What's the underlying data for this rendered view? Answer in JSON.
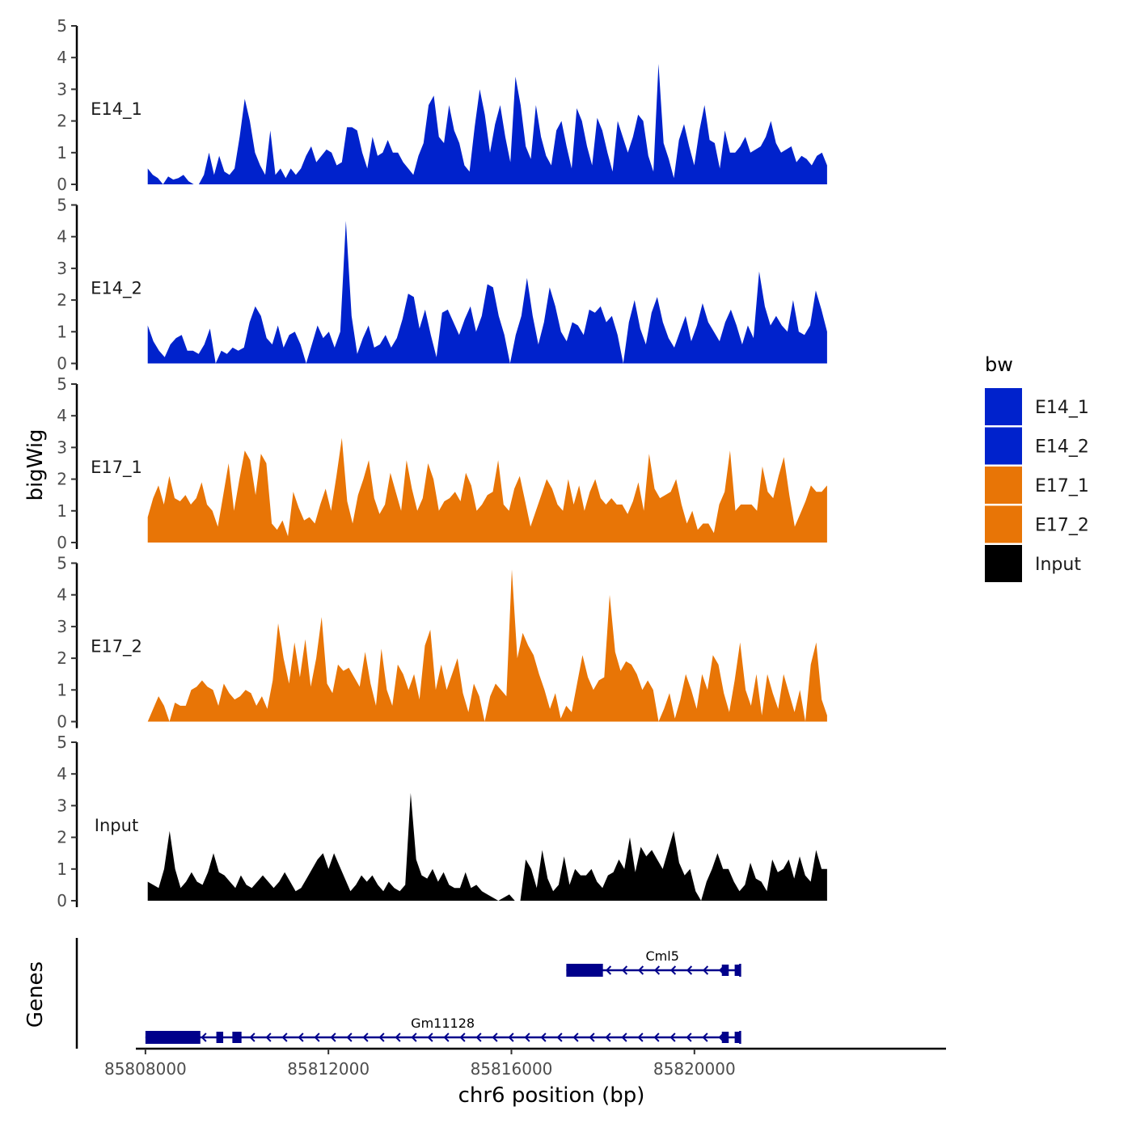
{
  "chart_data": {
    "type": "area",
    "xlabel": "chr6 position (bp)",
    "ylabel": "bigWig",
    "gene_panel_label": "Genes",
    "x_range": [
      85806500,
      85825500
    ],
    "x_ticks": [
      85808000,
      85812000,
      85816000,
      85820000
    ],
    "x_tick_labels": [
      "85808000",
      "85812000",
      "85816000",
      "85820000"
    ],
    "y_range": [
      0,
      5
    ],
    "y_ticks": [
      0,
      1,
      2,
      3,
      4,
      5
    ],
    "y_tick_labels": [
      "0",
      "1",
      "2",
      "3",
      "4",
      "5"
    ],
    "legend": {
      "title": "bw",
      "entries": [
        {
          "label": "E14_1",
          "color": "#0022CC"
        },
        {
          "label": "E14_2",
          "color": "#0022CC"
        },
        {
          "label": "E17_1",
          "color": "#E87506"
        },
        {
          "label": "E17_2",
          "color": "#E87506"
        },
        {
          "label": "Input",
          "color": "#000000"
        }
      ]
    },
    "tracks": [
      {
        "name": "E14_1",
        "color": "#0022CC",
        "x_start": 85808050,
        "x_end": 85822900,
        "values": [
          0.5,
          0.3,
          0.2,
          0,
          0.25,
          0.15,
          0.2,
          0.3,
          0.1,
          0,
          0,
          0.3,
          1.0,
          0.3,
          0.9,
          0.4,
          0.3,
          0.5,
          1.5,
          2.7,
          2.0,
          1.0,
          0.6,
          0.3,
          1.7,
          0.3,
          0.5,
          0.2,
          0.5,
          0.3,
          0.5,
          0.9,
          1.2,
          0.7,
          0.9,
          1.1,
          1.0,
          0.6,
          0.7,
          1.8,
          1.8,
          1.7,
          1.0,
          0.5,
          1.5,
          0.9,
          1.0,
          1.4,
          1.0,
          1.0,
          0.7,
          0.5,
          0.3,
          0.9,
          1.3,
          2.5,
          2.8,
          1.5,
          1.3,
          2.5,
          1.7,
          1.3,
          0.6,
          0.4,
          1.8,
          3.0,
          2.2,
          1.0,
          1.9,
          2.5,
          1.5,
          0.7,
          3.4,
          2.5,
          1.2,
          0.8,
          2.5,
          1.5,
          0.9,
          0.6,
          1.7,
          2.0,
          1.2,
          0.5,
          2.4,
          2.0,
          1.2,
          0.6,
          2.1,
          1.7,
          1.0,
          0.4,
          2.0,
          1.5,
          1.0,
          1.5,
          2.2,
          2.0,
          0.9,
          0.4,
          3.8,
          1.3,
          0.8,
          0.2,
          1.4,
          1.9,
          1.2,
          0.6,
          1.7,
          2.5,
          1.4,
          1.3,
          0.5,
          1.7,
          1.0,
          1.0,
          1.2,
          1.5,
          1.0,
          1.1,
          1.2,
          1.5,
          2.0,
          1.3,
          1.0,
          1.1,
          1.2,
          0.7,
          0.9,
          0.8,
          0.6,
          0.9,
          1.0,
          0.6
        ]
      },
      {
        "name": "E14_2",
        "color": "#0022CC",
        "x_start": 85808050,
        "x_end": 85822900,
        "values": [
          1.2,
          0.7,
          0.4,
          0.2,
          0.6,
          0.8,
          0.9,
          0.4,
          0.4,
          0.3,
          0.6,
          1.1,
          0,
          0.4,
          0.3,
          0.5,
          0.4,
          0.5,
          1.3,
          1.8,
          1.5,
          0.8,
          0.6,
          1.2,
          0.5,
          0.9,
          1.0,
          0.6,
          0,
          0.6,
          1.2,
          0.8,
          1.0,
          0.5,
          1.0,
          4.5,
          1.5,
          0.3,
          0.8,
          1.2,
          0.5,
          0.6,
          0.9,
          0.5,
          0.8,
          1.4,
          2.2,
          2.1,
          1.1,
          1.7,
          0.9,
          0.2,
          1.6,
          1.7,
          1.3,
          0.9,
          1.4,
          1.8,
          1.0,
          1.5,
          2.5,
          2.4,
          1.5,
          0.9,
          0,
          0.9,
          1.5,
          2.7,
          1.5,
          0.6,
          1.3,
          2.4,
          1.8,
          1.0,
          0.7,
          1.3,
          1.2,
          0.9,
          1.7,
          1.6,
          1.8,
          1.3,
          1.5,
          0.9,
          0,
          1.3,
          2.0,
          1.1,
          0.6,
          1.6,
          2.1,
          1.3,
          0.8,
          0.5,
          1.0,
          1.5,
          0.7,
          1.2,
          1.9,
          1.3,
          1.0,
          0.7,
          1.3,
          1.7,
          1.2,
          0.6,
          1.2,
          0.8,
          2.9,
          1.8,
          1.2,
          1.5,
          1.2,
          1.0,
          2.0,
          1.0,
          0.9,
          1.2,
          2.3,
          1.7,
          1.0
        ]
      },
      {
        "name": "E17_1",
        "color": "#E87506",
        "x_start": 85808050,
        "x_end": 85822900,
        "values": [
          0.8,
          1.4,
          1.8,
          1.2,
          2.1,
          1.4,
          1.3,
          1.5,
          1.2,
          1.4,
          1.9,
          1.2,
          1.0,
          0.5,
          1.5,
          2.5,
          1.0,
          2.0,
          2.9,
          2.6,
          1.5,
          2.8,
          2.5,
          0.6,
          0.4,
          0.7,
          0.2,
          1.6,
          1.1,
          0.7,
          0.8,
          0.6,
          1.2,
          1.7,
          1.0,
          2.1,
          3.3,
          1.3,
          0.6,
          1.5,
          2.0,
          2.6,
          1.4,
          0.9,
          1.2,
          2.2,
          1.6,
          1.0,
          2.6,
          1.7,
          1.0,
          1.4,
          2.5,
          2.0,
          1.0,
          1.3,
          1.4,
          1.6,
          1.3,
          2.2,
          1.8,
          1.0,
          1.2,
          1.5,
          1.6,
          2.6,
          1.2,
          1.0,
          1.7,
          2.1,
          1.3,
          0.5,
          1.0,
          1.5,
          2.0,
          1.7,
          1.2,
          1.0,
          2.0,
          1.2,
          1.8,
          1.0,
          1.6,
          2.0,
          1.4,
          1.2,
          1.4,
          1.2,
          1.2,
          0.9,
          1.3,
          1.9,
          1.0,
          2.8,
          1.7,
          1.4,
          1.5,
          1.6,
          2.0,
          1.2,
          0.6,
          1.0,
          0.4,
          0.6,
          0.6,
          0.3,
          1.2,
          1.6,
          2.9,
          1.0,
          1.2,
          1.2,
          1.2,
          1.0,
          2.4,
          1.6,
          1.4,
          2.1,
          2.7,
          1.5,
          0.5,
          0.9,
          1.3,
          1.8,
          1.6,
          1.6,
          1.8
        ]
      },
      {
        "name": "E17_2",
        "color": "#E87506",
        "x_start": 85808050,
        "x_end": 85822900,
        "values": [
          0,
          0.4,
          0.8,
          0.5,
          0,
          0.6,
          0.5,
          0.5,
          1.0,
          1.1,
          1.3,
          1.1,
          1.0,
          0.5,
          1.2,
          0.9,
          0.7,
          0.8,
          1.0,
          0.9,
          0.5,
          0.8,
          0.4,
          1.3,
          3.1,
          2.0,
          1.2,
          2.5,
          1.4,
          2.6,
          1.1,
          2.0,
          3.3,
          1.2,
          0.9,
          1.8,
          1.6,
          1.7,
          1.4,
          1.1,
          2.2,
          1.2,
          0.5,
          2.3,
          1.0,
          0.5,
          1.8,
          1.5,
          1.0,
          1.5,
          0.7,
          2.4,
          2.9,
          1.0,
          1.8,
          1.0,
          1.5,
          2.0,
          0.9,
          0.3,
          1.2,
          0.8,
          0,
          0.8,
          1.2,
          1.0,
          0.8,
          4.8,
          2.0,
          2.8,
          2.4,
          2.1,
          1.5,
          1.0,
          0.4,
          0.9,
          0.1,
          0.5,
          0.3,
          1.2,
          2.1,
          1.4,
          1.0,
          1.3,
          1.4,
          4.0,
          2.2,
          1.6,
          1.9,
          1.8,
          1.5,
          1.0,
          1.3,
          1.0,
          0,
          0.4,
          0.9,
          0.1,
          0.7,
          1.5,
          1.0,
          0.4,
          1.5,
          1.0,
          2.1,
          1.8,
          0.9,
          0.3,
          1.3,
          2.5,
          1.0,
          0.5,
          1.5,
          0.2,
          1.5,
          0.9,
          0.4,
          1.5,
          0.9,
          0.3,
          1.0,
          0,
          1.8,
          2.5,
          0.7,
          0.2
        ]
      },
      {
        "name": "Input",
        "color": "#000000",
        "x_start": 85808050,
        "x_end": 85822900,
        "values": [
          0.6,
          0.5,
          0.4,
          1.0,
          2.2,
          1.0,
          0.4,
          0.6,
          0.9,
          0.6,
          0.5,
          0.9,
          1.5,
          0.9,
          0.8,
          0.6,
          0.4,
          0.8,
          0.5,
          0.4,
          0.6,
          0.8,
          0.6,
          0.4,
          0.6,
          0.9,
          0.6,
          0.3,
          0.4,
          0.7,
          1.0,
          1.3,
          1.5,
          1.0,
          1.5,
          1.1,
          0.7,
          0.3,
          0.5,
          0.8,
          0.6,
          0.8,
          0.5,
          0.3,
          0.6,
          0.4,
          0.3,
          0.5,
          3.4,
          1.3,
          0.8,
          0.7,
          1.0,
          0.6,
          0.9,
          0.5,
          0.4,
          0.4,
          0.9,
          0.4,
          0.5,
          0.3,
          0.2,
          0.1,
          0,
          0.1,
          0.2,
          0,
          0,
          1.3,
          1.0,
          0.4,
          1.6,
          0.7,
          0.3,
          0.5,
          1.4,
          0.5,
          1.0,
          0.8,
          0.8,
          1.0,
          0.6,
          0.4,
          0.8,
          0.9,
          1.3,
          1.0,
          2.0,
          0.9,
          1.7,
          1.4,
          1.6,
          1.3,
          1.0,
          1.6,
          2.2,
          1.2,
          0.8,
          1.0,
          0.3,
          0,
          0.6,
          1.0,
          1.5,
          1.0,
          1.0,
          0.6,
          0.3,
          0.5,
          1.2,
          0.7,
          0.6,
          0.3,
          1.3,
          0.9,
          1.0,
          1.3,
          0.7,
          1.4,
          0.8,
          0.6,
          1.6,
          1.0,
          1.0
        ]
      }
    ],
    "genes": [
      {
        "name": "Cml5",
        "color": "#00008B",
        "strand": "-",
        "start": 85817200,
        "end": 85821000,
        "exons": [
          [
            85817200,
            85818000
          ],
          [
            85820600,
            85820750
          ],
          [
            85820880,
            85821000
          ]
        ]
      },
      {
        "name": "Gm11128",
        "color": "#00008B",
        "strand": "-",
        "start": 85808000,
        "end": 85821000,
        "exons": [
          [
            85808000,
            85809200
          ],
          [
            85809550,
            85809700
          ],
          [
            85809900,
            85810100
          ],
          [
            85820600,
            85820750
          ],
          [
            85820880,
            85821000
          ]
        ]
      }
    ]
  }
}
